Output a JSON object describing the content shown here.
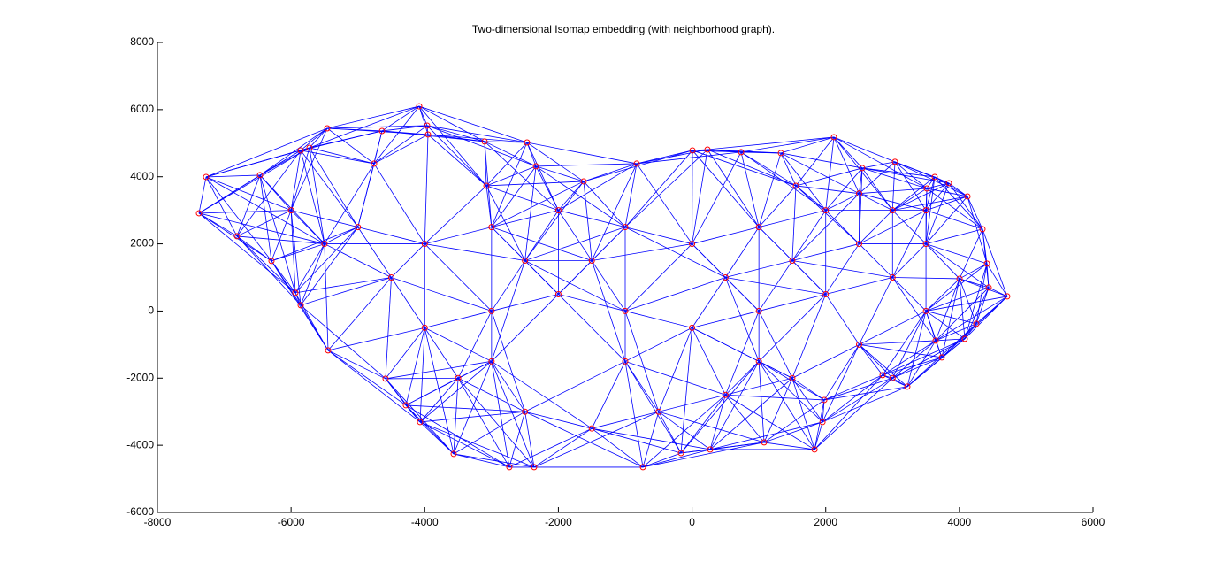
{
  "chart_data": {
    "type": "scatter",
    "title": "Two-dimensional Isomap embedding (with neighborhood graph).",
    "x": [
      -4083,
      -7272,
      -7378,
      -5459,
      -2469,
      -3964,
      -3104,
      -2336,
      2123,
      231,
      6,
      734,
      1329,
      3036,
      3631,
      4121,
      4346,
      4412,
      4716,
      4439,
      4081,
      3737,
      3221,
      2851,
      1978,
      1952,
      1833,
      1078,
      271,
      -166,
      -735,
      -2363,
      -2734,
      -3567,
      -4070,
      -4282,
      -4586,
      -5446,
      -5856,
      -5936,
      -6293,
      -6809,
      -6465,
      -5856,
      -5724,
      -4758,
      -3951,
      -4639,
      3644,
      4253,
      4002,
      3843,
      3512,
      2546,
      1554,
      -1622,
      -828,
      -3077,
      -5000,
      -4000,
      -3000,
      -2000,
      -1000,
      0,
      1000,
      2000,
      3000,
      3500,
      3000,
      2000,
      1000,
      0,
      -1000,
      -2000,
      -3000,
      -4000,
      -3500,
      -2500,
      -1500,
      -500,
      500,
      1500,
      2500,
      3500,
      -5500,
      -2500,
      -1500,
      500,
      1500,
      2500,
      -3000,
      -1000,
      1000,
      3000,
      -6000,
      -4500,
      2500,
      3500
    ],
    "y": [
      6100,
      3994,
      2913,
      5443,
      5020,
      5523,
      5049,
      4311,
      5180,
      4810,
      4785,
      4733,
      4706,
      4443,
      3994,
      3414,
      2439,
      1411,
      435,
      699,
      -830,
      -1384,
      -2254,
      -1911,
      -2650,
      -3309,
      -4126,
      -3915,
      -4126,
      -4232,
      -4653,
      -4653,
      -4653,
      -4258,
      -3309,
      -2808,
      -2017,
      -1173,
      173,
      541,
      1490,
      2228,
      4047,
      4785,
      4864,
      4390,
      5259,
      5365,
      -883,
      -382,
      962,
      3809,
      3651,
      4258,
      3730,
      3862,
      4390,
      3730,
      2500,
      2000,
      2500,
      3000,
      2500,
      2000,
      2500,
      3000,
      3000,
      2000,
      1000,
      500,
      0,
      -500,
      0,
      500,
      0,
      -500,
      -2000,
      -3000,
      -3500,
      -3000,
      -2500,
      -2000,
      -1000,
      0,
      2000,
      1500,
      1500,
      1000,
      1500,
      2000,
      -1500,
      -1500,
      -1500,
      -2000,
      3000,
      1000,
      3500,
      3000
    ],
    "xlim": [
      -8000,
      6000
    ],
    "xticks": [
      -8000,
      -6000,
      -4000,
      -2000,
      0,
      2000,
      4000,
      6000
    ],
    "ylim": [
      -6000,
      8000
    ],
    "yticks": [
      -6000,
      -4000,
      -2000,
      0,
      2000,
      4000,
      6000,
      8000
    ],
    "marker_color": "#ff0000",
    "edge_color": "#0000ff"
  }
}
